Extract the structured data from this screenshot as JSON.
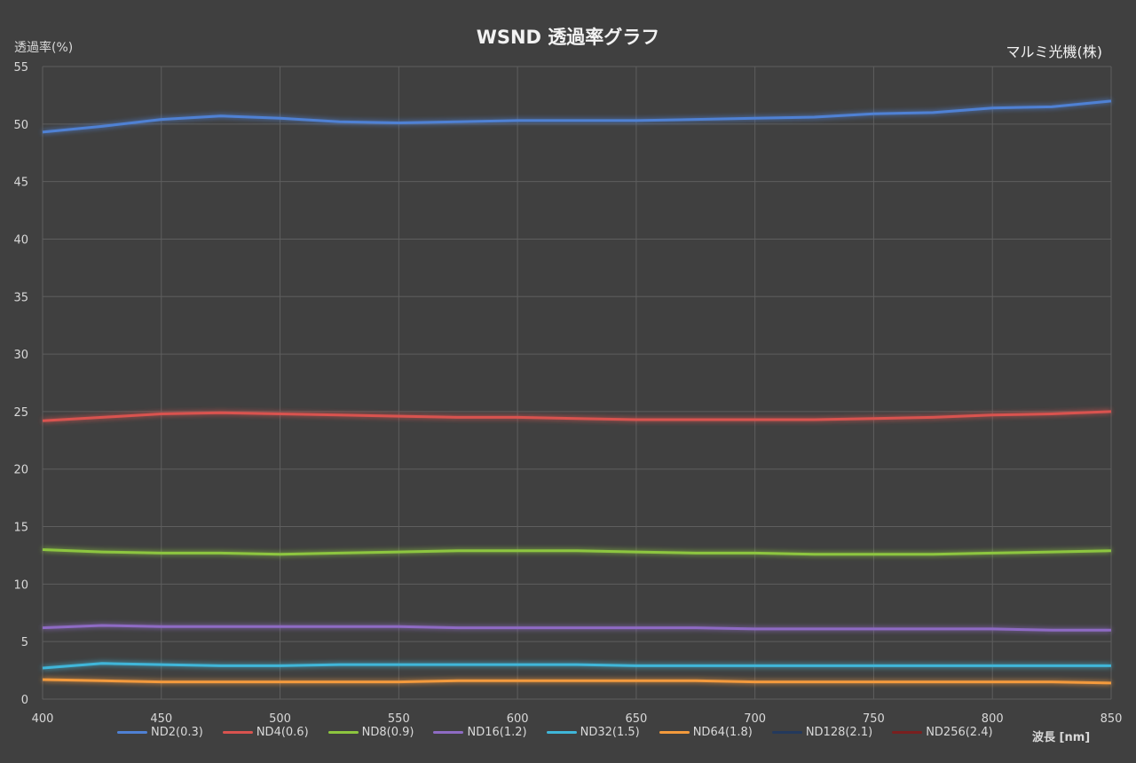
{
  "chart_data": {
    "type": "line",
    "title": "WSND 透過率グラフ",
    "ylabel": "透過率(%)",
    "xlabel": "波長 [nm]",
    "brand": "マルミ光機(株)",
    "xlim": [
      400,
      850
    ],
    "ylim": [
      0,
      55
    ],
    "xticks": [
      "400",
      "450",
      "500",
      "550",
      "600",
      "650",
      "700",
      "750",
      "800",
      "850"
    ],
    "yticks": [
      "0",
      "5",
      "10",
      "15",
      "20",
      "25",
      "30",
      "35",
      "40",
      "45",
      "50",
      "55"
    ],
    "grid": true,
    "legend_position": "bottom",
    "x": [
      400,
      425,
      450,
      475,
      500,
      525,
      550,
      575,
      600,
      625,
      650,
      675,
      700,
      725,
      750,
      775,
      800,
      825,
      850
    ],
    "series": [
      {
        "name": "ND2(0.3)",
        "color": "#4f81d4",
        "values": [
          49.3,
          49.8,
          50.4,
          50.7,
          50.5,
          50.2,
          50.1,
          50.2,
          50.3,
          50.3,
          50.3,
          50.4,
          50.5,
          50.6,
          50.9,
          51.0,
          51.4,
          51.5,
          52.0
        ]
      },
      {
        "name": "ND4(0.6)",
        "color": "#d9534f",
        "values": [
          24.2,
          24.5,
          24.8,
          24.9,
          24.8,
          24.7,
          24.6,
          24.5,
          24.5,
          24.4,
          24.3,
          24.3,
          24.3,
          24.3,
          24.4,
          24.5,
          24.7,
          24.8,
          25.0
        ]
      },
      {
        "name": "ND8(0.9)",
        "color": "#8dc63f",
        "values": [
          13.0,
          12.8,
          12.7,
          12.7,
          12.6,
          12.7,
          12.8,
          12.9,
          12.9,
          12.9,
          12.8,
          12.7,
          12.7,
          12.6,
          12.6,
          12.6,
          12.7,
          12.8,
          12.9
        ]
      },
      {
        "name": "ND16(1.2)",
        "color": "#8e6bc4",
        "values": [
          6.2,
          6.4,
          6.3,
          6.3,
          6.3,
          6.3,
          6.3,
          6.2,
          6.2,
          6.2,
          6.2,
          6.2,
          6.1,
          6.1,
          6.1,
          6.1,
          6.1,
          6.0,
          6.0
        ]
      },
      {
        "name": "ND32(1.5)",
        "color": "#3fb6d9",
        "values": [
          2.7,
          3.1,
          3.0,
          2.9,
          2.9,
          3.0,
          3.0,
          3.0,
          3.0,
          3.0,
          2.9,
          2.9,
          2.9,
          2.9,
          2.9,
          2.9,
          2.9,
          2.9,
          2.9
        ]
      },
      {
        "name": "ND64(1.8)",
        "color": "#f39a3c",
        "values": [
          1.7,
          1.6,
          1.5,
          1.5,
          1.5,
          1.5,
          1.5,
          1.6,
          1.6,
          1.6,
          1.6,
          1.6,
          1.5,
          1.5,
          1.5,
          1.5,
          1.5,
          1.5,
          1.4
        ]
      },
      {
        "name": "ND128(2.1)",
        "color": "#23395d",
        "values": [
          0.7,
          0.7,
          0.7,
          0.7,
          0.7,
          0.7,
          0.7,
          0.7,
          0.7,
          0.7,
          0.7,
          0.7,
          0.7,
          0.7,
          0.7,
          0.7,
          0.7,
          0.7,
          0.7
        ]
      },
      {
        "name": "ND256(2.4)",
        "color": "#7a1f1f",
        "values": [
          0.3,
          0.3,
          0.3,
          0.3,
          0.3,
          0.3,
          0.3,
          0.3,
          0.3,
          0.3,
          0.3,
          0.3,
          0.3,
          0.3,
          0.3,
          0.3,
          0.3,
          0.3,
          0.3
        ]
      }
    ]
  }
}
